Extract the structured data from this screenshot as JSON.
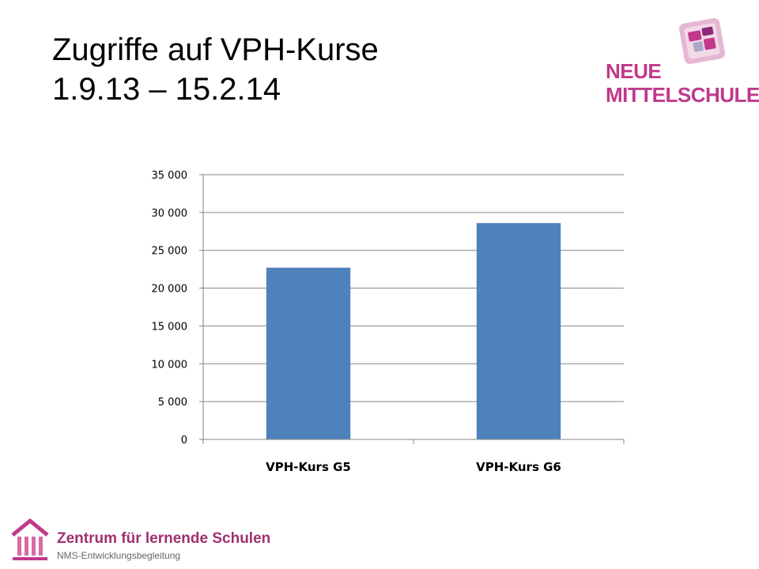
{
  "slide": {
    "title_line1": "Zugriffe auf VPH-Kurse",
    "title_line2": "1.9.13 – 15.2.14"
  },
  "logos": {
    "nms_line1": "NEUE",
    "nms_line2": "MITTELSCHULE",
    "zentrum_name": "Zentrum für lernende Schulen",
    "zentrum_sub": "NMS-Entwicklungsbegleitung"
  },
  "colors": {
    "bar": "#4f81bd",
    "gridline": "#868686",
    "brand_magenta": "#c0398a"
  },
  "chart_data": {
    "type": "bar",
    "categories": [
      "VPH-Kurs G5",
      "VPH-Kurs G6"
    ],
    "values": [
      22700,
      28600
    ],
    "ylim": [
      0,
      35000
    ],
    "yticks": [
      0,
      5000,
      10000,
      15000,
      20000,
      25000,
      30000,
      35000
    ],
    "ytick_labels": [
      "0",
      "5 000",
      "10 000",
      "15 000",
      "20 000",
      "25 000",
      "30 000",
      "35 000"
    ],
    "grid": true,
    "legend": "none"
  }
}
